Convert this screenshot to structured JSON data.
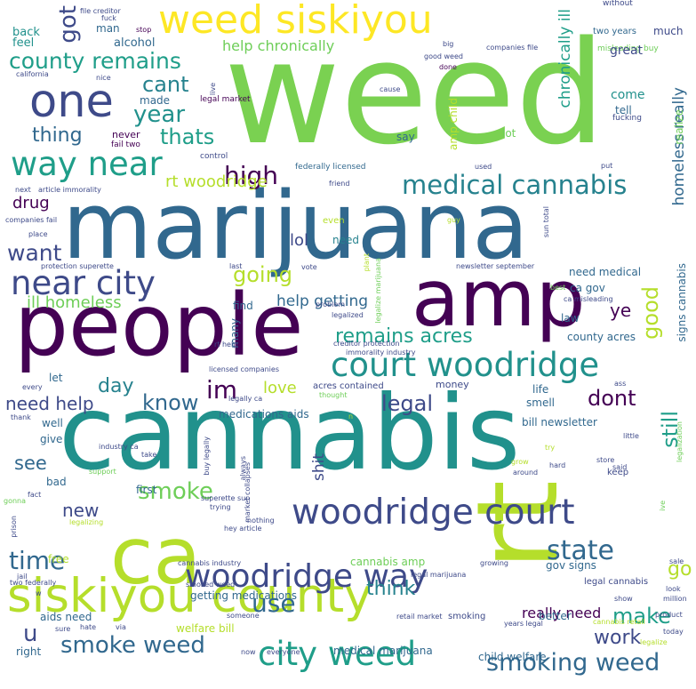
{
  "background": "#ffffff",
  "palette": [
    "#440154",
    "#3e4a89",
    "#31688e",
    "#26828e",
    "#1f9e89",
    "#35b779",
    "#6ece58",
    "#b5de2b",
    "#fde725"
  ],
  "words": [
    "weed",
    "marijuana",
    "cannabis",
    "people",
    "rt",
    "amp",
    "ca",
    "siskiyou county",
    "weed siskiyou",
    "one",
    "woodridge court",
    "court woodridge",
    "city weed",
    "woodridge way",
    "smoking weed",
    "way near",
    "near city",
    "medical cannabis",
    "county remains",
    "year",
    "cant",
    "thats",
    "thing",
    "got",
    "high",
    "rt woodridge",
    "drug",
    "want",
    "lol",
    "going",
    "ill homeless",
    "help getting",
    "remains acres",
    "im",
    "day",
    "know",
    "legal",
    "dont",
    "need help",
    "love",
    "still",
    "see",
    "smoke",
    "state",
    "go",
    "time",
    "use",
    "new",
    "smoke weed",
    "make",
    "think",
    "work",
    "really need",
    "u",
    "good",
    "ye",
    "shit",
    "chronically ill",
    "homeless really",
    "help chronically",
    "back",
    "feel",
    "alcohol",
    "man",
    "file creditor",
    "fuck",
    "stop",
    "two years",
    "much",
    "without",
    "misleading buy",
    "big",
    "companies file",
    "great",
    "good weed",
    "california",
    "nice",
    "done",
    "made",
    "never",
    "fail two",
    "legal market",
    "live",
    "cause",
    "come",
    "fucking",
    "tell",
    "realize",
    "say",
    "lot",
    "amp child",
    "control",
    "federally licensed",
    "used",
    "put",
    "next",
    "article immorality",
    "friend",
    "companies fail",
    "place",
    "even",
    "guy",
    "need",
    "sun total",
    "protection superette",
    "last",
    "vote",
    "plant",
    "newsletter september",
    "best",
    "legalize marijuana",
    "need medical",
    "ca gov",
    "signs cannabis",
    "problem",
    "legalized",
    "ca misleading",
    "law",
    "find",
    "many",
    "creditor protection",
    "immorality industry",
    "county acres",
    "rt help",
    "licensed companies",
    "let",
    "acres contained",
    "money",
    "every",
    "ass",
    "legally ca",
    "thought",
    "life",
    "smell",
    "thank",
    "well",
    "medications aids",
    "n",
    "bill newsletter",
    "give",
    "industry ca",
    "take",
    "buy legally",
    "little",
    "try",
    "legalization",
    "hard",
    "said",
    "store",
    "keep",
    "support",
    "always",
    "grow",
    "around",
    "bad",
    "market collapses",
    "gonna",
    "fact",
    "first",
    "superette sun",
    "trying",
    "prison",
    "ive",
    "legalizing",
    "nothing",
    "hey article",
    "free",
    "cannabis amp",
    "sale",
    "cannabis industry",
    "growing",
    "gov signs",
    "jail",
    "two federally",
    "w",
    "legal marijuana",
    "smoked weed",
    "getting medications",
    "look",
    "million",
    "better",
    "legal cannabis",
    "show",
    "smoking",
    "via",
    "years legal",
    "aids need",
    "someone",
    "retail market",
    "product",
    "sure",
    "hate",
    "welfare bill",
    "cannabis retail",
    "today",
    "right",
    "now",
    "everyone",
    "medical marijuana",
    "child welfare",
    "legalize"
  ]
}
